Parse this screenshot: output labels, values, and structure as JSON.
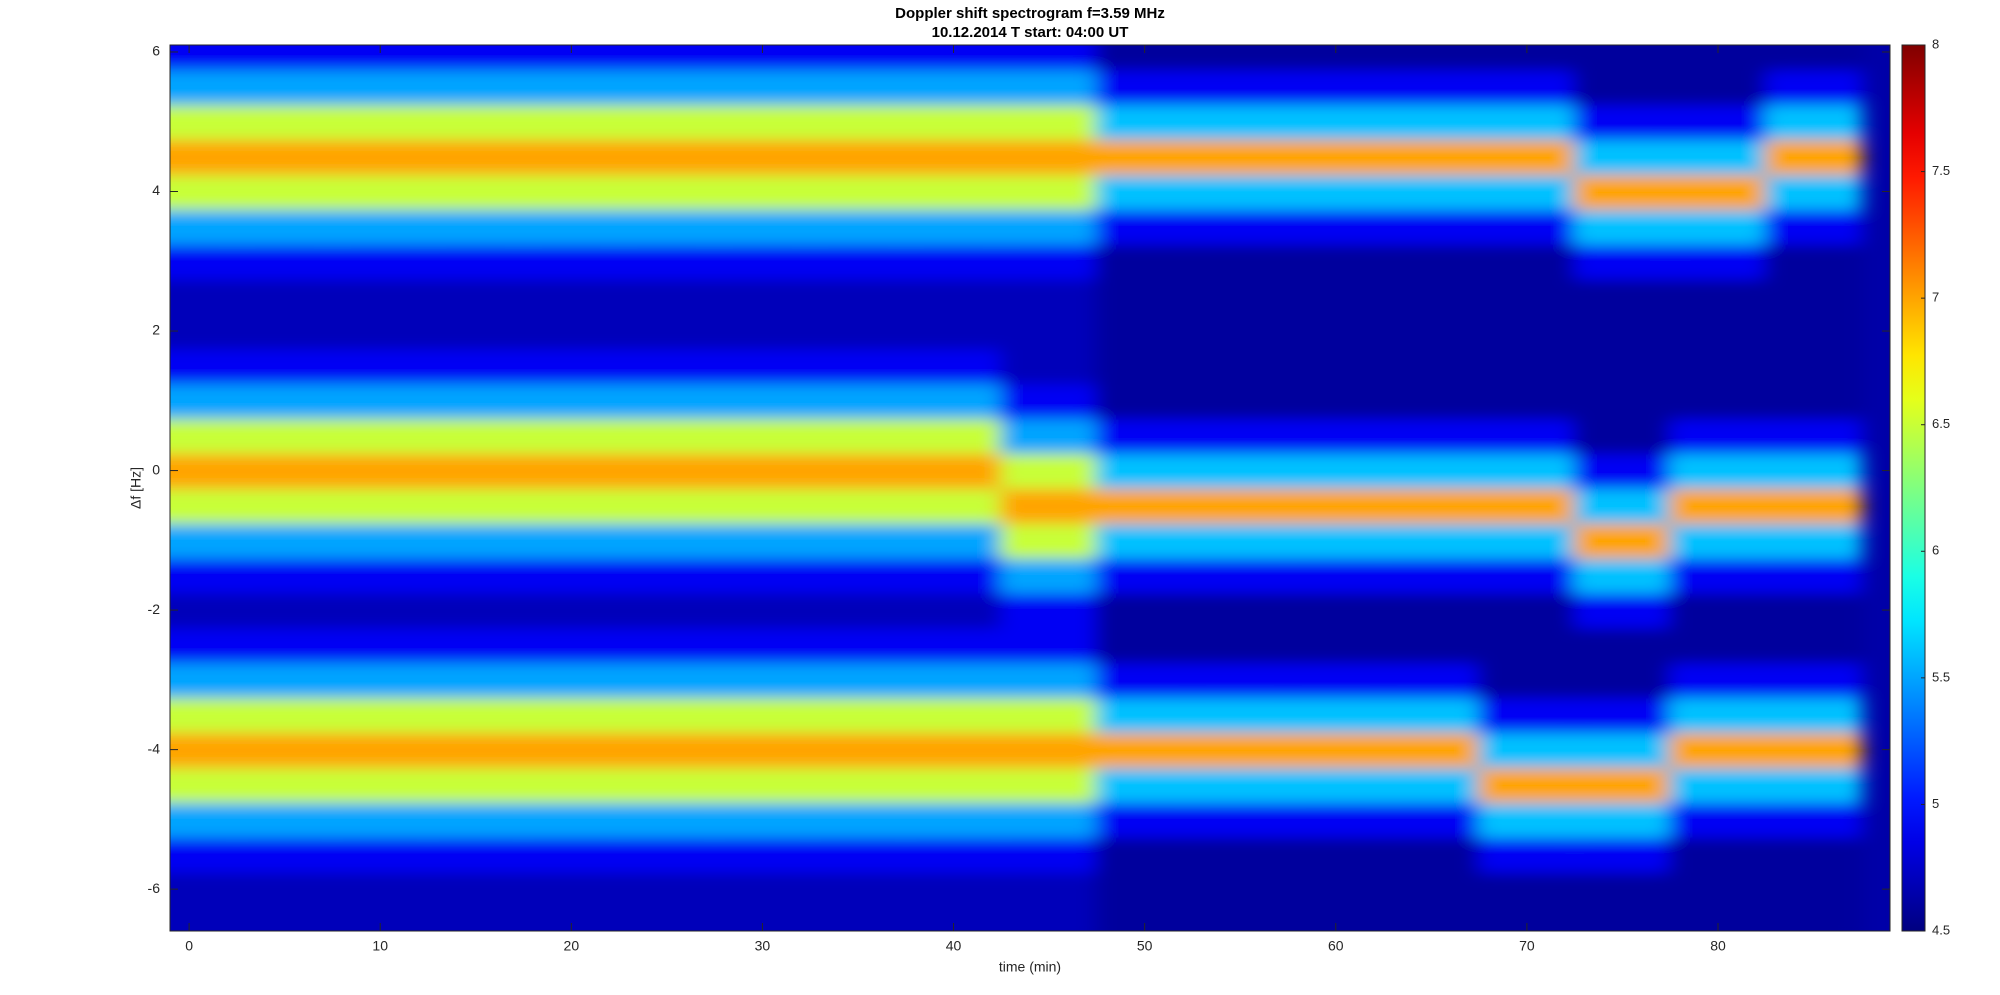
{
  "chart_data": {
    "type": "heatmap",
    "title": "Doppler shift spectrogram f=3.59 MHz",
    "subtitle": "10.12.2014   T start: 04:00 UT",
    "x_label": "time (min)",
    "y_label": "Δf [Hz]",
    "colormap": "jet",
    "x": [
      0,
      5,
      10,
      15,
      20,
      25,
      30,
      35,
      40,
      45,
      50,
      55,
      60,
      65,
      70,
      75,
      80,
      85
    ],
    "y": [
      -6.5,
      -6,
      -5.5,
      -5,
      -4.5,
      -4,
      -3.5,
      -3,
      -2.5,
      -2,
      -1.5,
      -1,
      -0.5,
      0,
      0.5,
      1,
      1.5,
      2,
      2.5,
      3,
      3.5,
      4,
      4.5,
      5,
      5.5,
      6
    ],
    "z": [
      [
        4.7,
        4.7,
        4.7,
        4.7,
        4.7,
        4.7,
        4.7,
        4.7,
        4.7,
        4.7,
        4.6,
        4.6,
        4.6,
        4.6,
        4.6,
        4.6,
        4.6,
        4.6
      ],
      [
        4.7,
        4.7,
        4.7,
        4.7,
        4.7,
        4.7,
        4.7,
        4.7,
        4.7,
        4.7,
        4.6,
        4.6,
        4.6,
        4.6,
        4.6,
        4.6,
        4.6,
        4.6
      ],
      [
        4.9,
        4.9,
        4.9,
        4.9,
        4.9,
        4.9,
        4.9,
        4.9,
        4.9,
        4.9,
        4.6,
        4.6,
        4.6,
        4.6,
        4.9,
        4.9,
        4.6,
        4.6
      ],
      [
        5.5,
        5.5,
        5.5,
        5.5,
        5.5,
        5.5,
        5.5,
        5.5,
        5.5,
        5.5,
        4.9,
        4.9,
        4.9,
        4.9,
        5.6,
        5.6,
        4.9,
        4.9
      ],
      [
        6.5,
        6.5,
        6.5,
        6.5,
        6.5,
        6.5,
        6.5,
        6.5,
        6.5,
        6.5,
        5.6,
        5.6,
        5.6,
        5.6,
        7.0,
        7.0,
        5.6,
        5.6
      ],
      [
        7.0,
        7.0,
        7.0,
        7.0,
        7.0,
        7.0,
        7.0,
        7.0,
        7.0,
        7.0,
        7.0,
        7.0,
        7.0,
        7.0,
        5.6,
        5.6,
        7.0,
        7.0
      ],
      [
        6.5,
        6.5,
        6.5,
        6.5,
        6.5,
        6.5,
        6.5,
        6.5,
        6.5,
        6.5,
        5.6,
        5.6,
        5.6,
        5.6,
        4.9,
        4.9,
        5.6,
        5.6
      ],
      [
        5.5,
        5.5,
        5.5,
        5.5,
        5.5,
        5.5,
        5.5,
        5.5,
        5.5,
        5.5,
        4.9,
        4.9,
        4.9,
        4.9,
        4.6,
        4.6,
        4.9,
        4.9
      ],
      [
        4.9,
        4.9,
        4.9,
        4.9,
        4.9,
        4.9,
        4.9,
        4.9,
        4.9,
        4.9,
        4.6,
        4.6,
        4.6,
        4.6,
        4.6,
        4.6,
        4.6,
        4.6
      ],
      [
        4.7,
        4.7,
        4.7,
        4.7,
        4.7,
        4.7,
        4.7,
        4.7,
        4.7,
        4.9,
        4.6,
        4.6,
        4.6,
        4.6,
        4.6,
        4.9,
        4.6,
        4.6
      ],
      [
        4.9,
        4.9,
        4.9,
        4.9,
        4.9,
        4.9,
        4.9,
        4.9,
        4.9,
        5.5,
        4.9,
        4.9,
        4.9,
        4.9,
        4.9,
        5.6,
        4.9,
        4.9
      ],
      [
        5.5,
        5.5,
        5.5,
        5.5,
        5.5,
        5.5,
        5.5,
        5.5,
        5.5,
        6.5,
        5.6,
        5.6,
        5.6,
        5.6,
        5.6,
        7.0,
        5.6,
        5.6
      ],
      [
        6.5,
        6.5,
        6.5,
        6.5,
        6.5,
        6.5,
        6.5,
        6.5,
        6.5,
        7.0,
        7.0,
        7.0,
        7.0,
        7.0,
        7.0,
        5.6,
        7.0,
        7.0
      ],
      [
        7.0,
        7.0,
        7.0,
        7.0,
        7.0,
        7.0,
        7.0,
        7.0,
        7.0,
        6.5,
        5.6,
        5.6,
        5.6,
        5.6,
        5.6,
        4.9,
        5.6,
        5.6
      ],
      [
        6.5,
        6.5,
        6.5,
        6.5,
        6.5,
        6.5,
        6.5,
        6.5,
        6.5,
        5.5,
        4.9,
        4.9,
        4.9,
        4.9,
        4.9,
        4.6,
        4.9,
        4.9
      ],
      [
        5.5,
        5.5,
        5.5,
        5.5,
        5.5,
        5.5,
        5.5,
        5.5,
        5.5,
        4.9,
        4.6,
        4.6,
        4.6,
        4.6,
        4.6,
        4.6,
        4.6,
        4.6
      ],
      [
        4.9,
        4.9,
        4.9,
        4.9,
        4.9,
        4.9,
        4.9,
        4.9,
        4.9,
        4.7,
        4.6,
        4.6,
        4.6,
        4.6,
        4.6,
        4.6,
        4.6,
        4.6
      ],
      [
        4.7,
        4.7,
        4.7,
        4.7,
        4.7,
        4.7,
        4.7,
        4.7,
        4.7,
        4.7,
        4.6,
        4.6,
        4.6,
        4.6,
        4.6,
        4.6,
        4.6,
        4.6
      ],
      [
        4.7,
        4.7,
        4.7,
        4.7,
        4.7,
        4.7,
        4.7,
        4.7,
        4.7,
        4.7,
        4.6,
        4.6,
        4.6,
        4.6,
        4.6,
        4.6,
        4.6,
        4.6
      ],
      [
        4.9,
        4.9,
        4.9,
        4.9,
        4.9,
        4.9,
        4.9,
        4.9,
        4.9,
        4.9,
        4.6,
        4.6,
        4.6,
        4.6,
        4.6,
        4.9,
        4.9,
        4.6
      ],
      [
        5.5,
        5.5,
        5.5,
        5.5,
        5.5,
        5.5,
        5.5,
        5.5,
        5.5,
        5.5,
        4.9,
        4.9,
        4.9,
        4.9,
        4.9,
        5.6,
        5.6,
        4.9
      ],
      [
        6.5,
        6.5,
        6.5,
        6.5,
        6.5,
        6.5,
        6.5,
        6.5,
        6.5,
        6.5,
        5.6,
        5.6,
        5.6,
        5.6,
        5.6,
        7.0,
        7.0,
        5.6
      ],
      [
        7.0,
        7.0,
        7.0,
        7.0,
        7.0,
        7.0,
        7.0,
        7.0,
        7.0,
        7.0,
        7.0,
        7.0,
        7.0,
        7.0,
        7.0,
        5.6,
        5.6,
        7.0
      ],
      [
        6.5,
        6.5,
        6.5,
        6.5,
        6.5,
        6.5,
        6.5,
        6.5,
        6.5,
        6.5,
        5.6,
        5.6,
        5.6,
        5.6,
        5.6,
        4.9,
        4.9,
        5.6
      ],
      [
        5.5,
        5.5,
        5.5,
        5.5,
        5.5,
        5.5,
        5.5,
        5.5,
        5.5,
        5.5,
        4.9,
        4.9,
        4.9,
        4.9,
        4.9,
        4.6,
        4.6,
        4.9
      ],
      [
        4.9,
        4.9,
        4.9,
        4.9,
        4.9,
        4.9,
        4.9,
        4.9,
        4.9,
        4.9,
        4.6,
        4.6,
        4.6,
        4.6,
        4.6,
        4.6,
        4.6,
        4.6
      ]
    ],
    "xlim": [
      -1,
      89
    ],
    "xticks": [
      0,
      10,
      20,
      30,
      40,
      50,
      60,
      70,
      80
    ],
    "ylim": [
      -6.6,
      6.1
    ],
    "yticks": [
      -6,
      -4,
      -2,
      0,
      2,
      4,
      6
    ],
    "clim": [
      4.5,
      8
    ],
    "cticks": [
      4.5,
      5,
      5.5,
      6,
      6.5,
      7,
      7.5,
      8
    ]
  }
}
